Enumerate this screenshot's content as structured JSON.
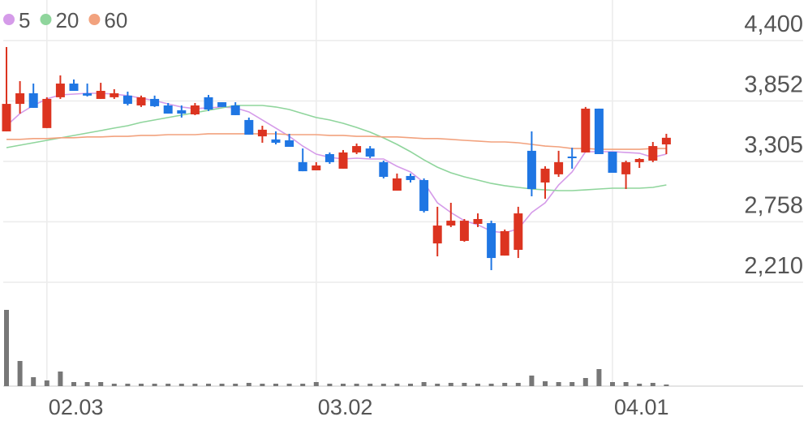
{
  "chart_data": {
    "type": "candlestick",
    "categories": [
      null,
      null,
      null,
      "02.03",
      null,
      null,
      null,
      null,
      null,
      null,
      null,
      null,
      null,
      null,
      null,
      null,
      null,
      null,
      null,
      null,
      null,
      null,
      null,
      "03.02",
      null,
      null,
      null,
      null,
      null,
      null,
      null,
      null,
      null,
      null,
      null,
      null,
      null,
      null,
      null,
      null,
      null,
      null,
      null,
      null,
      null,
      "04.01",
      null,
      null,
      null,
      null
    ],
    "open": [
      3577,
      3826,
      3922,
      3607,
      3886,
      4010,
      3922,
      3871,
      3886,
      3901,
      3812,
      3871,
      3812,
      3768,
      3731,
      3886,
      3841,
      3812,
      3680,
      3532,
      3504,
      3496,
      3298,
      3224,
      3371,
      3239,
      3386,
      3422,
      3298,
      3040,
      3173,
      3136,
      2562,
      2724,
      2585,
      2739,
      2746,
      2452,
      2504,
      3401,
      3114,
      3188,
      3349,
      3386,
      3783,
      3393,
      3188,
      3298,
      3312,
      3459
    ],
    "high": [
      4341,
      4032,
      4010,
      3886,
      4084,
      4047,
      4010,
      4017,
      3959,
      3937,
      3901,
      3901,
      3834,
      3812,
      3834,
      3907,
      3841,
      3841,
      3702,
      3628,
      3577,
      3555,
      3422,
      3298,
      3386,
      3408,
      3467,
      3444,
      3312,
      3195,
      3195,
      3151,
      2894,
      2930,
      2783,
      2834,
      2768,
      2688,
      2894,
      3577,
      3261,
      3401,
      3429,
      3798,
      3783,
      3393,
      3312,
      3334,
      3481,
      3555
    ],
    "low": [
      3577,
      3738,
      3790,
      3607,
      3871,
      3944,
      3893,
      3871,
      3871,
      3812,
      3798,
      3798,
      3738,
      3702,
      3724,
      3761,
      3798,
      3724,
      3547,
      3474,
      3459,
      3437,
      3216,
      3224,
      3283,
      3239,
      3371,
      3334,
      3151,
      3040,
      3114,
      2842,
      2445,
      2710,
      2577,
      2710,
      2320,
      2452,
      2430,
      2989,
      2967,
      3165,
      3239,
      3386,
      3371,
      3202,
      3055,
      3246,
      3298,
      3371
    ],
    "close": [
      3826,
      3922,
      3790,
      3871,
      4010,
      3944,
      3901,
      3944,
      3922,
      3826,
      3886,
      3805,
      3738,
      3738,
      3812,
      3775,
      3798,
      3724,
      3547,
      3592,
      3474,
      3437,
      3216,
      3268,
      3298,
      3386,
      3444,
      3349,
      3165,
      3151,
      3136,
      2856,
      2724,
      2768,
      2768,
      2783,
      2430,
      2673,
      2834,
      3055,
      3239,
      3298,
      3334,
      3783,
      3371,
      3202,
      3298,
      3327,
      3444,
      3519
    ],
    "up_color": "#dc3420",
    "down_color": "#1f76e3",
    "volume": [
      94,
      31,
      11,
      7,
      18,
      5,
      5,
      5,
      3,
      3,
      3,
      3,
      3,
      3,
      3,
      3,
      3,
      3,
      4,
      3,
      3,
      3,
      3,
      5,
      3,
      3,
      3,
      3,
      3,
      3,
      3,
      5,
      3,
      4,
      4,
      3,
      3,
      4,
      4,
      13,
      6,
      5,
      5,
      10,
      21,
      5,
      5,
      3,
      4,
      2
    ],
    "volume_color": "#777777",
    "series": [
      {
        "name": "5",
        "color": "#d59be9",
        "values": [
          3628,
          3738,
          3812,
          3871,
          3907,
          3915,
          3922,
          3922,
          3915,
          3901,
          3878,
          3856,
          3826,
          3798,
          3783,
          3790,
          3798,
          3790,
          3753,
          3680,
          3607,
          3532,
          3444,
          3371,
          3342,
          3327,
          3334,
          3327,
          3327,
          3261,
          3209,
          3114,
          2930,
          2842,
          2768,
          2731,
          2673,
          2658,
          2694,
          2842,
          2930,
          3092,
          3209,
          3393,
          3393,
          3393,
          3386,
          3379,
          3342,
          3371
        ]
      },
      {
        "name": "20",
        "color": "#8fd59c",
        "values": [
          3430,
          3452,
          3474,
          3496,
          3518,
          3540,
          3562,
          3584,
          3607,
          3628,
          3658,
          3680,
          3702,
          3724,
          3746,
          3768,
          3790,
          3812,
          3812,
          3812,
          3798,
          3775,
          3738,
          3702,
          3680,
          3650,
          3613,
          3570,
          3518,
          3459,
          3393,
          3319,
          3253,
          3202,
          3165,
          3136,
          3106,
          3085,
          3070,
          3055,
          3047,
          3040,
          3040,
          3047,
          3055,
          3062,
          3062,
          3062,
          3070,
          3092
        ]
      },
      {
        "name": "60",
        "color": "#f2a27e",
        "values": [
          3505,
          3505,
          3512,
          3512,
          3519,
          3519,
          3527,
          3527,
          3532,
          3532,
          3541,
          3541,
          3547,
          3547,
          3547,
          3555,
          3555,
          3555,
          3555,
          3555,
          3555,
          3547,
          3547,
          3547,
          3541,
          3541,
          3532,
          3532,
          3527,
          3527,
          3519,
          3512,
          3512,
          3505,
          3496,
          3489,
          3481,
          3481,
          3474,
          3459,
          3444,
          3437,
          3422,
          3422,
          3414,
          3414,
          3414,
          3414,
          3422,
          3422
        ]
      }
    ],
    "ylim": [
      2210,
      4767
    ],
    "yticks": [
      {
        "value": 4400,
        "label": "4,400"
      },
      {
        "value": 3852,
        "label": "3,852"
      },
      {
        "value": 3305,
        "label": "3,305"
      },
      {
        "value": 2758,
        "label": "2,758"
      },
      {
        "value": 2210,
        "label": "2,210"
      }
    ],
    "grid": true
  }
}
